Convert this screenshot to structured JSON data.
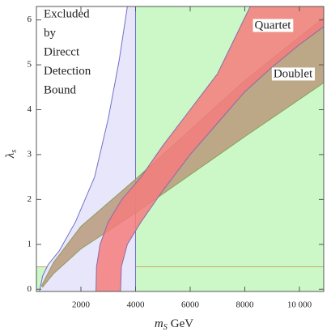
{
  "chart_data": {
    "type": "region",
    "xlim": [
      370,
      10890
    ],
    "ylim": [
      -0.05,
      6.3
    ],
    "xticks": [
      2000,
      4000,
      6000,
      8000,
      {
        "value": 10000,
        "label": "10 000"
      }
    ],
    "yticks": [
      0,
      1,
      2,
      3,
      4,
      5,
      6
    ],
    "x_label": {
      "symbol": "m",
      "subscript": "S",
      "unit": "GeV"
    },
    "y_label": {
      "symbol": "λ",
      "subscript": "s"
    },
    "annotation": [
      "Excluded",
      "by",
      "Direcct",
      "Detection",
      "Bound"
    ],
    "regions": [
      {
        "color": "#ccf7c6",
        "stroke": "#ccf7c6",
        "x": [
          4000,
          10890,
          10890,
          4000
        ],
        "y": [
          -0.05,
          -0.05,
          6.3,
          6.3
        ]
      },
      {
        "color": "#ccf7c6",
        "stroke": "#c8aa70",
        "x": [
          370,
          10890,
          10890,
          370
        ],
        "y": [
          -0.05,
          -0.05,
          0.5,
          0.5
        ]
      },
      {
        "color": "#e8e6fb",
        "stroke": "#7070c8",
        "x": [
          480,
          600,
          800,
          1200,
          1800,
          2500,
          3000,
          3400,
          3700,
          4000,
          4000
        ],
        "y": [
          -0.05,
          0.3,
          0.55,
          0.85,
          1.5,
          2.5,
          3.8,
          5.1,
          6.3,
          6.3,
          -0.05
        ]
      },
      {
        "name": "Doublet",
        "color": "#b89a7a",
        "stroke": "#8c9c5c",
        "x": [
          560,
          1000,
          2000,
          4000,
          6000,
          8000,
          10890,
          10890,
          8000,
          6000,
          4000,
          2000,
          1000,
          600
        ],
        "y": [
          0.08,
          0.6,
          1.4,
          2.45,
          3.55,
          4.65,
          6.05,
          4.6,
          3.4,
          2.55,
          1.7,
          0.9,
          0.35,
          0.05
        ]
      },
      {
        "name": "Quartet",
        "color": "#f47c7c",
        "stroke": "#8a6aa8",
        "x": [
          2550,
          2570,
          2700,
          3000,
          3500,
          4200,
          5000,
          6000,
          7000,
          8200,
          10890,
          10890,
          10000,
          9000,
          8000,
          7000,
          6000,
          5000,
          4200,
          3700,
          3480,
          3450
        ],
        "y": [
          -0.05,
          0.5,
          1.0,
          1.5,
          2.0,
          2.5,
          3.2,
          4.0,
          4.8,
          6.3,
          6.3,
          5.85,
          5.45,
          4.95,
          4.4,
          3.7,
          3.0,
          2.2,
          1.5,
          1.0,
          0.5,
          -0.05
        ]
      }
    ]
  }
}
